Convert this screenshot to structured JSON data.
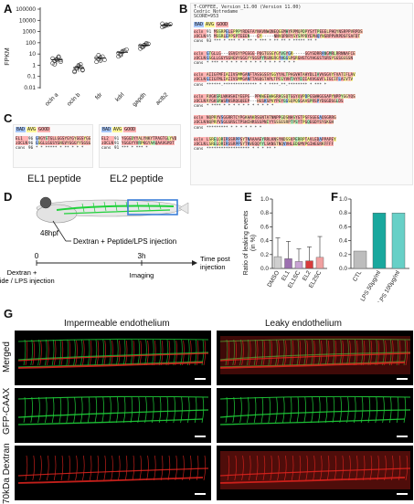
{
  "panels": {
    "A": "A",
    "B": "B",
    "C": "C",
    "D": "D",
    "E": "E",
    "F": "F",
    "G": "G"
  },
  "colors": {
    "teal": "#19a89e",
    "mediumturquoise": "#67d0c7",
    "grey": "#bdbdbd",
    "green_signal": "#1fd13a",
    "red_signal": "#e2241e",
    "vessel_blue": "#3b7fd8"
  },
  "panel_a": {
    "ylabel": "FPKM",
    "yticks": [
      "100000",
      "10000",
      "1000",
      "100",
      "10",
      "1",
      "0.1",
      "0.01"
    ],
    "chart_data": {
      "type": "scatter",
      "categories": [
        "ocln a",
        "ocln b",
        "fdr",
        "kdrl",
        "gapdh",
        "actb2"
      ],
      "ylabel": "FPKM",
      "ylim": [
        0.01,
        100000
      ],
      "yscale": "log",
      "series": [
        {
          "values": [
            [
              1.5,
              2.5,
              3.5,
              5,
              2,
              4,
              1.2,
              3,
              6,
              2.8
            ],
            [
              0.3,
              0.5,
              0.8,
              1.2,
              0.4,
              0.25,
              0.6,
              1,
              0.7,
              0.35
            ],
            [
              2,
              3.5,
              5,
              6,
              3,
              4.5,
              8,
              2.5
            ],
            [
              6,
              10,
              15,
              20,
              25,
              12,
              8,
              18
            ],
            [
              30,
              45,
              60,
              70,
              80,
              55,
              40,
              65,
              90
            ],
            [
              2500,
              3000,
              3500,
              4000,
              4500,
              5000,
              3200,
              4200
            ]
          ]
        }
      ]
    }
  },
  "panel_b": {
    "header": [
      "T-COFFEE, Version_11.00 (Version 11.00)",
      "Cedric Notredame",
      "SCORE=953"
    ],
    "legend": [
      "BAD",
      "AVG",
      "GOOD"
    ],
    "names": [
      "ocln",
      "zOCLN",
      "cons"
    ],
    "scores": [
      "91",
      "95",
      "93"
    ],
    "blocks": [
      {
        "rows": [
          "MSSRPELEPPPYRDEFAYNAVNWQNEQGEMHYRPMQPDPYSYTPEEELPHQYNSRPPVRPDS",
          "MSSRLEPPSPTEEEN---GY-----NNVQPDRYSYSPPDYEPHQYNSRPPVRPDSFSAFDT",
          "*** * ***      *   *      **  * *** *   ** ** * ***** ** *"
        ]
      },
      {
        "rows": [
          "GTGLLG---GSVGYYPGSGG-PQGTGSGYGYVGYGR-----GGYSDRRANGMRLRRNNAFCE",
          "GSGLLGGYSGNGVYGGGYYSGSPYRGNGRGYHGGSPGRGHSTGYHGGSTGRSYGGSGGSSN",
          "* ***    *  * * *  * *  * * * *  *    * *  *   * *"
        ]
      },
      {
        "rows": [
          "AIIGFMFIAIIVSMMGANFTASSGSSYGGYYALTPAGVHTAHYDLIAVVGGVYFVATIFLAV",
          "GIIGFMLIAIIVSMMGANFTASQGTAPLTPCGYVHTAYYDIIAVVGGVFLIGCIFLAIVTV",
          " ******.**************  *    *    ****.**.********   * *** *"
        ]
      },
      {
        "rows": [
          "RVGKSRLWKHSHIYEEPG--PPKWEEWHGRAGSQTGGYQVPDPGSWHGGSAPYNPPYGGYQS",
          "RYGKSRWSRKSRQGQEEP---HGSKSPVYPGYGGSQPQSGAASPRSPYDGGDSGLDS",
          "* ****   *   * *      *   * *    *  *  *   *  *"
        ]
      },
      {
        "rows": [
          "NQPRYVSGGRRTCYPGKHAKRSGNTATNNPPGDSNHSYGTPSFSGEGAQSGRRG",
          "NQPRYVSGGSRSCTPSHIHRSSSPNIYYSSSESRPTPSYTPGQEGDYSYGKGH",
          "*********  * *         *     *  *   *       *"
        ]
      },
      {
        "rows": [
          "LSRELQRIRSSRPPSYTNAAAAEYRRLKNSYNDSSVPERRPTAVLEDAPPAPEY",
          "LSRELQRIRSSRPPSYTNVEQQYYLSKNSTNQVVHLEDGMVPGIHEGRKFFFF",
          "******************  *   * * ** *"
        ]
      }
    ]
  },
  "panel_c": {
    "legend": [
      "BAD",
      "AVG",
      "GOOD"
    ],
    "left": {
      "names": [
        "EL1",
        "zOCLN",
        "cons"
      ],
      "scores": [
        "96",
        "96",
        "96"
      ],
      "rows": [
        "GRGYSTGLLGGSYGYGYGGSYGGSGS",
        "GSGLLGGSYGNGVYGGGYYSGSGSS",
        "* *  ***** *  ** * * *"
      ]
    },
    "right": {
      "names": [
        "EL2",
        "zOCLN",
        "cons"
      ],
      "scores": [
        "91",
        "91",
        "91"
      ],
      "rows": [
        "YGGGDYYALYNKYTPAGTGLYVD",
        "YGGGYYVRPKGYAAQAAVGPDT",
        "***  * ***      *"
      ]
    },
    "cap_el1": "EL1 peptide",
    "cap_el2": "EL2 peptide"
  },
  "panel_d": {
    "stage": "48hpf",
    "injection_label": "Dextran + Peptide/LPS injection",
    "t0": "0",
    "t3": "3h",
    "bottom_left": "Dextran +\nPeptide / LPS injection",
    "imaging": "Imaging",
    "time_post": "Time post\ninjection"
  },
  "panel_e": {
    "ylabel": "Ratio of leaking events\n(in %)",
    "chart_data": {
      "type": "bar",
      "categories": [
        "DMSO",
        "EL1",
        "EL1SC",
        "EL2",
        "EL2SC"
      ],
      "values": [
        0.17,
        0.14,
        0.1,
        0.11,
        0.16
      ],
      "errors": [
        0.27,
        0.25,
        0.18,
        0.2,
        0.3
      ],
      "colors": [
        "#cfcfcf",
        "#9c6fb0",
        "#c9a3d4",
        "#d83b3b",
        "#f0a0a0"
      ],
      "ylim": [
        0,
        1.0
      ],
      "yticks": [
        "1.0",
        "0.8",
        "0.6",
        "0.4",
        "0.2",
        "0.0"
      ]
    }
  },
  "panel_f": {
    "chart_data": {
      "type": "bar",
      "categories": [
        "CTL",
        "LPS 50μg/ml",
        "LPS 100μg/ml"
      ],
      "values": [
        0.25,
        0.8,
        0.8
      ],
      "colors": [
        "#bdbdbd",
        "#19a89e",
        "#67d0c7"
      ],
      "ylim": [
        0,
        1.0
      ],
      "yticks": [
        "1.0",
        "0.8",
        "0.6",
        "0.4",
        "0.2",
        "0.0"
      ]
    }
  },
  "panel_g": {
    "col_left": "Impermeable endothelium",
    "col_right": "Leaky endothelium",
    "row_merged": "Merged",
    "row_gfp": "GFP-CAAX",
    "row_dextran": "70kDa Dextran"
  }
}
